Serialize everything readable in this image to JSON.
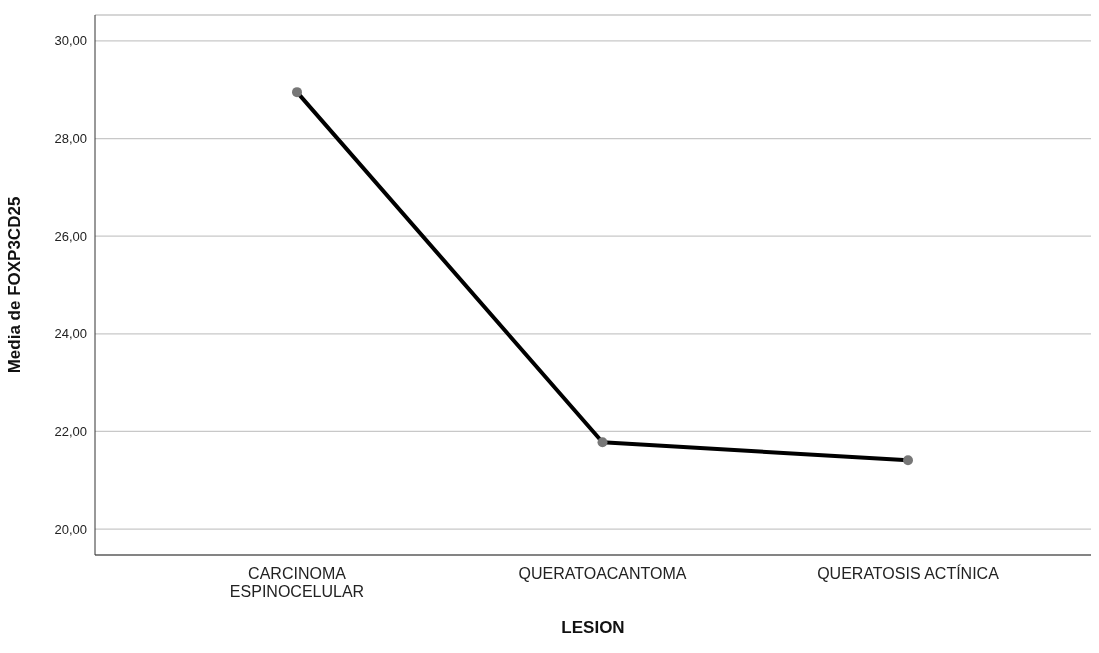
{
  "chart_data": {
    "type": "line",
    "xlabel": "LESION",
    "ylabel": "Media de FOXP3CD25",
    "categories": [
      "CARCINOMA ESPINOCELULAR",
      "QUERATOACANTOMA",
      "QUERATOSIS ACTÍNICA"
    ],
    "series": [
      {
        "color": "#000000",
        "values": [
          28.95,
          21.78,
          21.41
        ]
      }
    ],
    "ylim": [
      19.47,
      30.53
    ],
    "yticks": [
      {
        "value": 20,
        "label": "20,00"
      },
      {
        "value": 22,
        "label": "22,00"
      },
      {
        "value": 24,
        "label": "24,00"
      },
      {
        "value": 26,
        "label": "26,00"
      },
      {
        "value": 28,
        "label": "28,00"
      },
      {
        "value": 30,
        "label": "30,00"
      }
    ],
    "grid": "y",
    "marker": "circle",
    "line_style": "solid"
  }
}
